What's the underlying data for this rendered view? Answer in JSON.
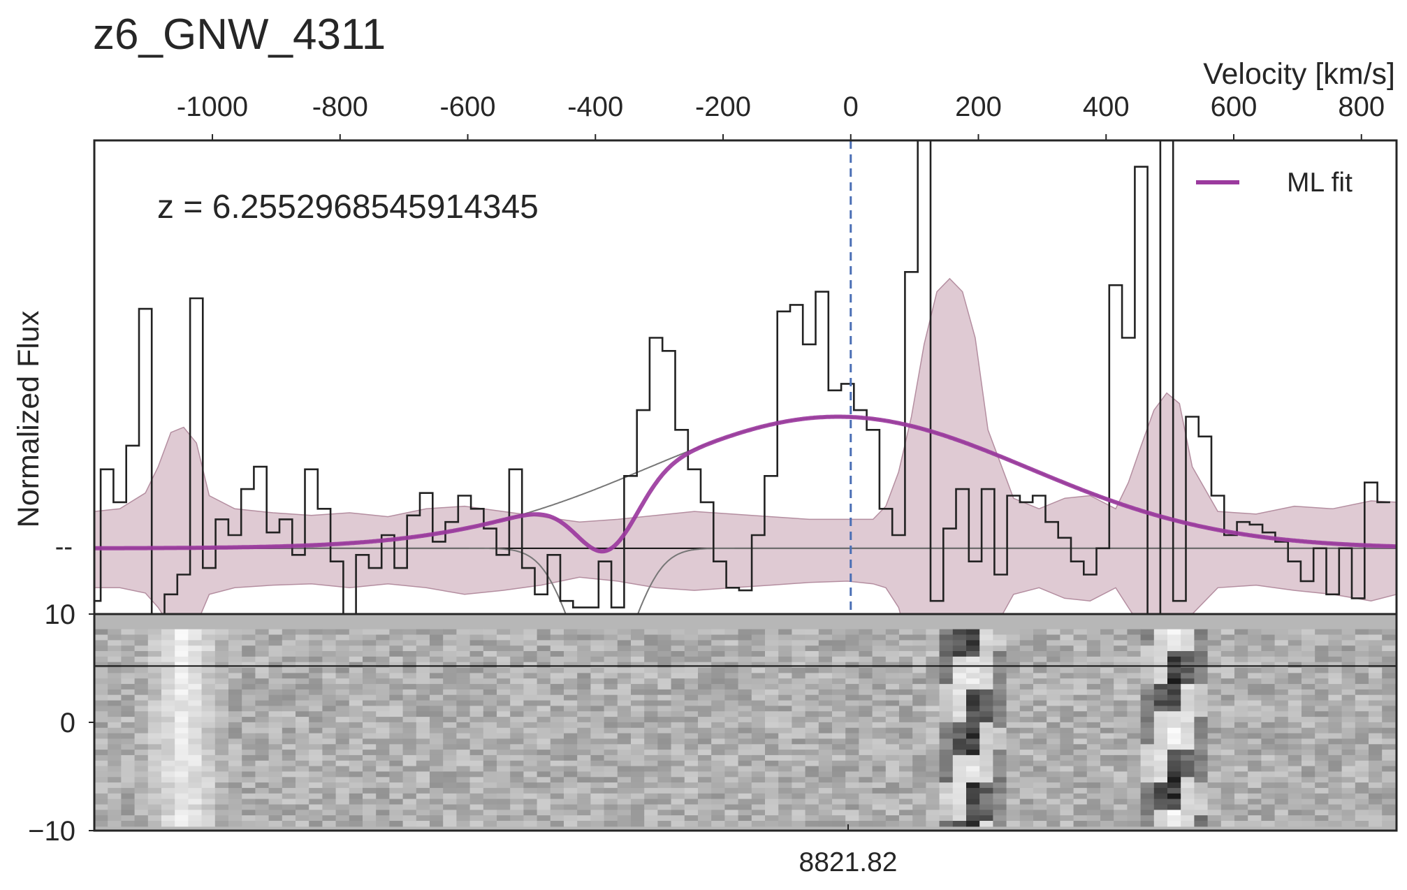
{
  "title": "z6_GNW_4311",
  "redshift_label": "z = 6.2552968545914345",
  "top_axis": {
    "label": "Velocity [km/s]",
    "ticks": [
      -1000,
      -800,
      -600,
      -400,
      -200,
      0,
      200,
      400,
      600,
      800
    ],
    "tick_labels": [
      "-1000",
      "-800",
      "-600",
      "-400",
      "-200",
      "0",
      "200",
      "400",
      "600",
      "800"
    ],
    "range": [
      -1185,
      855
    ]
  },
  "ylabel": "Normalized Flux",
  "ytick_label_top": "--",
  "bottom_axis": {
    "tick_label": "8821.82",
    "tick_velocity": 0
  },
  "spatial_axis": {
    "ticks": [
      10,
      0,
      -10
    ],
    "tick_labels": [
      "10",
      "0",
      "−10"
    ],
    "range": [
      -10,
      10
    ]
  },
  "legend": {
    "label": "ML fit",
    "position": "top-right"
  },
  "colors": {
    "fit": "#9b3a9e",
    "band": "#c9a7b6",
    "data": "#222222",
    "marker": "#4a6fb5",
    "baseline": "#111111",
    "component": "#777777"
  },
  "chart_data": {
    "type": "line",
    "x_units": "km/s",
    "y_units": "normalized flux (data-normalized, baseline = 0, peak of fit = 1)",
    "ylim": [
      -0.5,
      3.1
    ],
    "xlim": [
      -1185,
      855
    ],
    "systemic_velocity": 0,
    "baseline": 0,
    "spectrum": {
      "style": "step",
      "x": [
        -1185,
        -1165,
        -1145,
        -1125,
        -1105,
        -1085,
        -1065,
        -1045,
        -1025,
        -1005,
        -985,
        -965,
        -945,
        -925,
        -905,
        -885,
        -865,
        -845,
        -825,
        -805,
        -785,
        -765,
        -745,
        -725,
        -705,
        -685,
        -665,
        -645,
        -625,
        -605,
        -585,
        -565,
        -545,
        -525,
        -505,
        -485,
        -465,
        -445,
        -425,
        -405,
        -385,
        -365,
        -345,
        -325,
        -305,
        -285,
        -265,
        -245,
        -225,
        -205,
        -185,
        -165,
        -145,
        -125,
        -105,
        -85,
        -65,
        -45,
        -25,
        -5,
        15,
        35,
        55,
        75,
        95,
        115,
        135,
        155,
        175,
        195,
        215,
        235,
        255,
        275,
        295,
        315,
        335,
        355,
        375,
        395,
        415,
        435,
        455,
        475,
        495,
        515,
        535,
        555,
        575,
        595,
        615,
        635,
        655,
        675,
        695,
        715,
        735,
        755,
        775,
        795,
        815,
        835
      ],
      "y": [
        -0.4,
        0.6,
        0.35,
        0.78,
        1.82,
        -0.5,
        -0.35,
        -0.2,
        1.9,
        -0.15,
        0.22,
        0.1,
        0.45,
        0.62,
        0.12,
        0.22,
        -0.05,
        0.6,
        0.3,
        -0.1,
        -0.5,
        -0.05,
        -0.15,
        0.1,
        -0.15,
        0.25,
        0.42,
        0.05,
        0.2,
        0.4,
        0.3,
        0.15,
        -0.05,
        0.6,
        -0.15,
        -0.35,
        -0.05,
        -0.4,
        -0.45,
        -0.45,
        -0.1,
        -0.45,
        0.55,
        1.05,
        1.6,
        1.5,
        0.9,
        0.6,
        0.35,
        -0.1,
        -0.3,
        -0.32,
        0.1,
        0.55,
        1.8,
        1.85,
        1.55,
        1.95,
        1.2,
        1.25,
        1.05,
        0.9,
        0.3,
        0.1,
        2.1,
        3.1,
        -0.4,
        0.15,
        0.45,
        -0.1,
        0.45,
        -0.2,
        0.4,
        0.35,
        0.4,
        0.2,
        0.08,
        -0.1,
        -0.2,
        0.0,
        2.0,
        1.6,
        2.9,
        -0.5,
        3.1,
        -0.4,
        1.0,
        0.85,
        0.4,
        0.1,
        0.2,
        0.18,
        0.12,
        0.05,
        -0.1,
        -0.25,
        0.0,
        -0.35,
        0.0,
        -0.38,
        0.5,
        0.35
      ]
    },
    "error_band": {
      "x": [
        -1185,
        -1145,
        -1105,
        -1085,
        -1065,
        -1045,
        -1025,
        -1005,
        -965,
        -905,
        -845,
        -785,
        -725,
        -665,
        -605,
        -545,
        -485,
        -425,
        -365,
        -305,
        -245,
        -185,
        -125,
        -65,
        -5,
        35,
        55,
        75,
        95,
        115,
        135,
        155,
        175,
        195,
        215,
        255,
        295,
        335,
        375,
        415,
        435,
        455,
        475,
        495,
        515,
        535,
        575,
        635,
        695,
        755,
        815,
        855
      ],
      "upper": [
        0.28,
        0.3,
        0.42,
        0.62,
        0.88,
        0.92,
        0.8,
        0.4,
        0.3,
        0.27,
        0.25,
        0.27,
        0.24,
        0.3,
        0.32,
        0.28,
        0.24,
        0.2,
        0.22,
        0.25,
        0.28,
        0.26,
        0.24,
        0.22,
        0.22,
        0.22,
        0.32,
        0.58,
        1.0,
        1.55,
        1.95,
        2.05,
        1.95,
        1.6,
        0.9,
        0.38,
        0.3,
        0.38,
        0.4,
        0.3,
        0.5,
        0.78,
        1.05,
        1.18,
        1.1,
        0.62,
        0.28,
        0.26,
        0.32,
        0.3,
        0.36,
        0.35
      ],
      "lower": [
        -0.3,
        -0.3,
        -0.34,
        -0.45,
        -0.6,
        -0.65,
        -0.58,
        -0.35,
        -0.3,
        -0.28,
        -0.27,
        -0.3,
        -0.27,
        -0.3,
        -0.35,
        -0.32,
        -0.28,
        -0.22,
        -0.25,
        -0.3,
        -0.32,
        -0.3,
        -0.28,
        -0.26,
        -0.25,
        -0.27,
        -0.3,
        -0.45,
        -0.8,
        -1.2,
        -1.45,
        -1.5,
        -1.45,
        -1.2,
        -0.7,
        -0.35,
        -0.3,
        -0.38,
        -0.4,
        -0.3,
        -0.45,
        -0.6,
        -0.8,
        -0.9,
        -0.85,
        -0.5,
        -0.3,
        -0.28,
        -0.32,
        -0.35,
        -0.4,
        -0.35
      ]
    },
    "ml_fit": {
      "model": "gaussian_with_absorption",
      "amplitude": 1.0,
      "center": -20,
      "sigma": 300,
      "absorption_center": -390,
      "absorption_depth": 1.05,
      "absorption_sigma": 48
    },
    "components": [
      {
        "type": "intrinsic_emission",
        "amplitude": 1.0,
        "center": -20,
        "sigma": 300
      },
      {
        "type": "absorption",
        "center": -390,
        "depth": 1.05,
        "sigma": 48
      }
    ],
    "spectrum_2d": {
      "type": "heatmap",
      "colormap": "gray_r",
      "spatial_range": [
        -10,
        10
      ],
      "masked_rows_y_approx": [
        [
          8.8,
          10
        ],
        [
          -10,
          -9.8
        ]
      ],
      "trace_y": 5.2,
      "bright_features_velocity": [
        -1045,
        185,
        505
      ]
    }
  }
}
